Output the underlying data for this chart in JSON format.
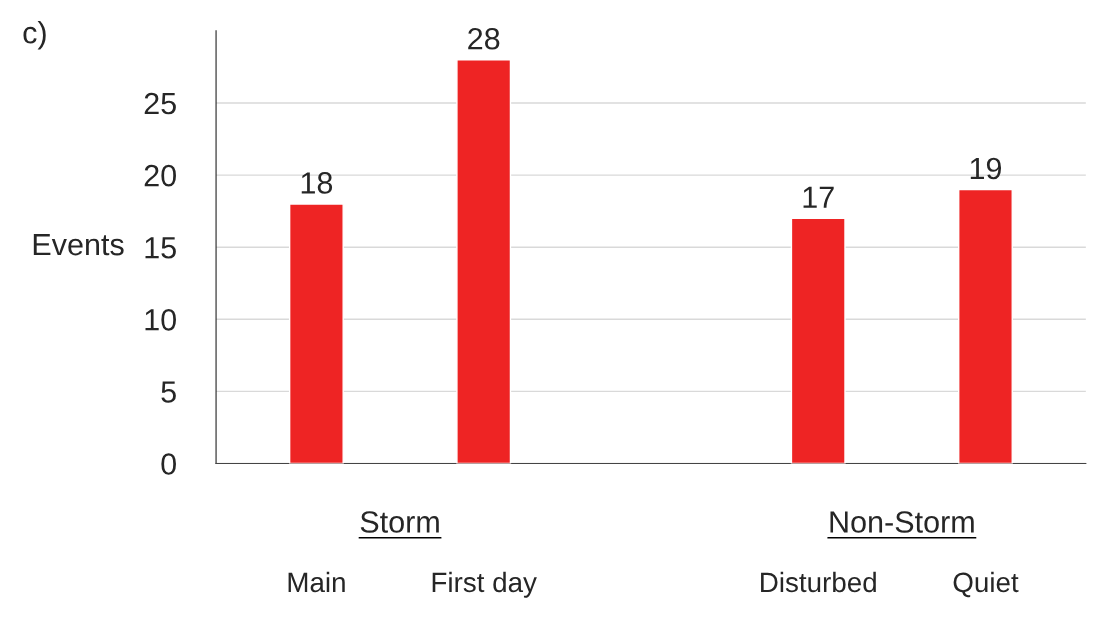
{
  "chart_data": {
    "type": "bar",
    "ylabel": "Events",
    "categories": [
      "Main",
      "First day",
      null,
      "Disturbed",
      "Quiet"
    ],
    "values": [
      18,
      28,
      null,
      17,
      19
    ],
    "color": "#ee2424",
    "data_labels": true,
    "ylim": [
      0,
      30
    ],
    "yticks": [
      0,
      5,
      10,
      15,
      20,
      25
    ],
    "grid": "y",
    "annotations": [
      "c)",
      "Storm",
      "Non-Storm"
    ]
  }
}
